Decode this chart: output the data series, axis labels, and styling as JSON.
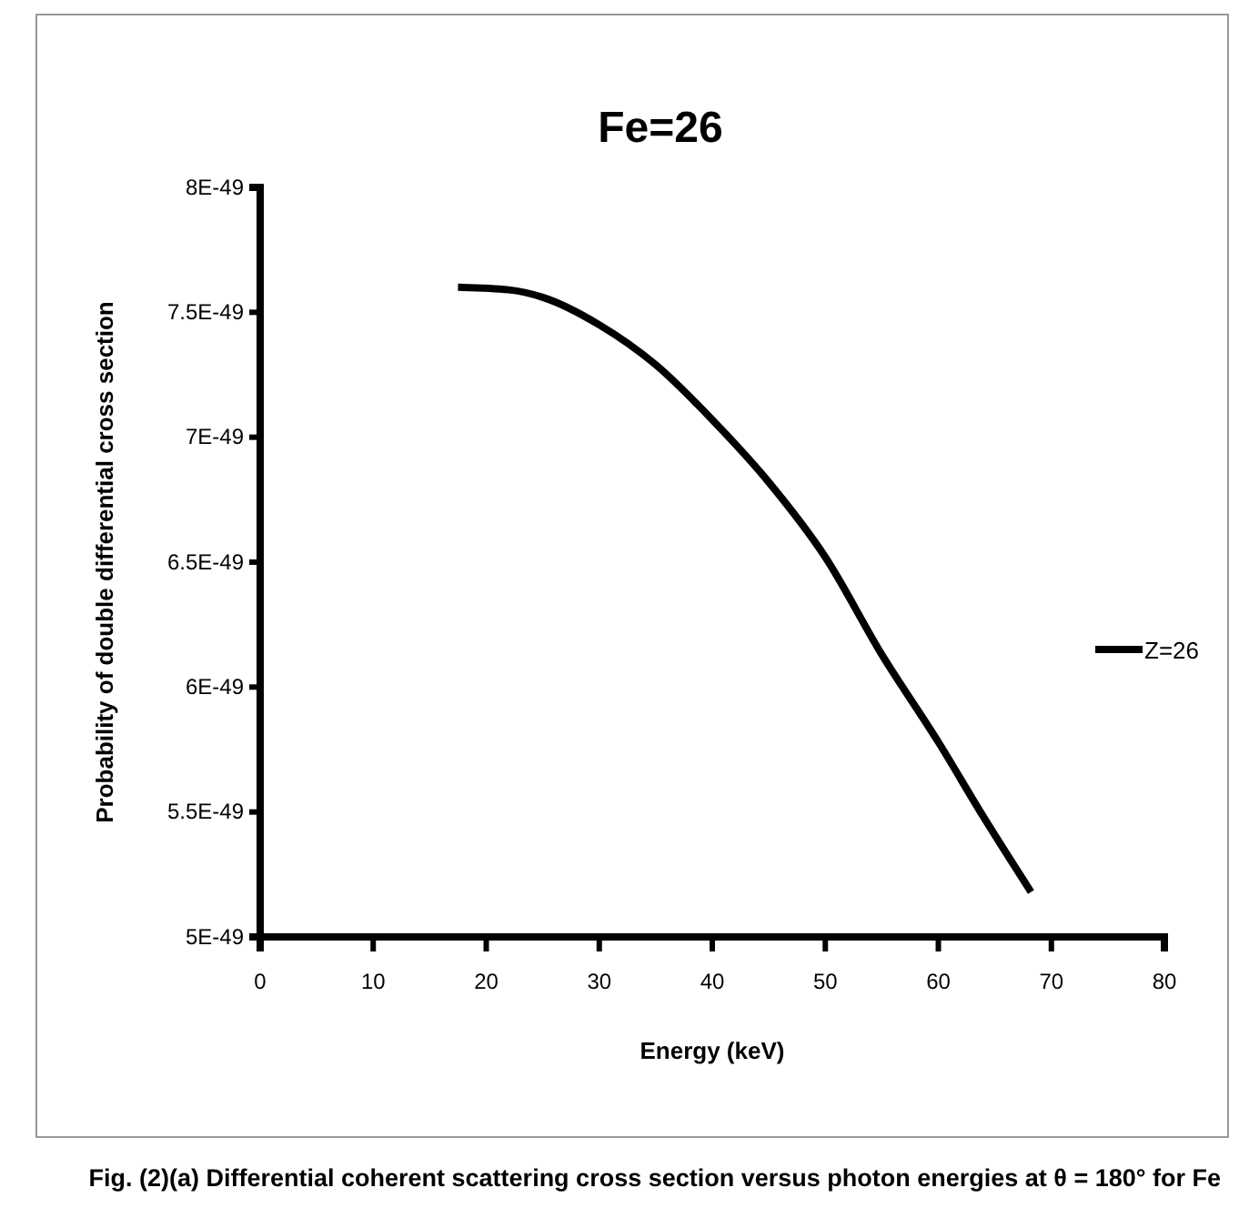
{
  "chart_data": {
    "type": "line",
    "title": "Fe=26",
    "xlabel": "Energy (keV)",
    "ylabel": "Probability of double differential cross section",
    "x": [
      17.5,
      22,
      25,
      30,
      35,
      40,
      45,
      50,
      55,
      60,
      64,
      68.2
    ],
    "series": [
      {
        "name": "Z=26",
        "color": "#000000",
        "values": [
          7.6e-49,
          7.59e-49,
          7.56e-49,
          7.45e-49,
          7.29e-49,
          7.07e-49,
          6.82e-49,
          6.52e-49,
          6.13e-49,
          5.78e-49,
          5.48e-49,
          5.18e-49
        ]
      }
    ],
    "xlim": [
      0,
      80
    ],
    "xticks": [
      0,
      10,
      20,
      30,
      40,
      50,
      60,
      70,
      80
    ],
    "ylim": [
      5e-49,
      8e-49
    ],
    "yticks": [
      {
        "value": 5e-49,
        "label": "5E-49"
      },
      {
        "value": 5.5e-49,
        "label": "5.5E-49"
      },
      {
        "value": 6e-49,
        "label": "6E-49"
      },
      {
        "value": 6.5e-49,
        "label": "6.5E-49"
      },
      {
        "value": 7e-49,
        "label": "7E-49"
      },
      {
        "value": 7.5e-49,
        "label": "7.5E-49"
      },
      {
        "value": 8e-49,
        "label": "8E-49"
      }
    ],
    "legend": "right",
    "marker": "none",
    "line_style": "solid",
    "grid": false,
    "annotations": [
      "Fig.  (2)(a) Differential coherent scattering cross section versus photon energies at θ = 180° for Fe"
    ]
  }
}
